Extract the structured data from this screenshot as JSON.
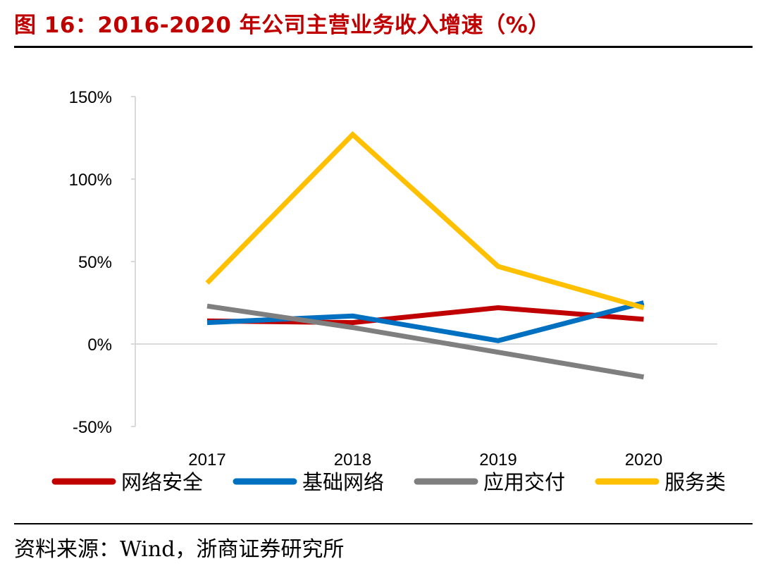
{
  "figure": {
    "title": "图 16：2016-2020 年公司主营业务收入增速（%）",
    "source": "资料来源：Wind，浙商证券研究所"
  },
  "chart_data": {
    "type": "line",
    "title": "图 16：2016-2020 年公司主营业务收入增速（%）",
    "xlabel": "",
    "ylabel": "",
    "categories": [
      "2017",
      "2018",
      "2019",
      "2020"
    ],
    "ylim": [
      -50,
      150
    ],
    "yticks": [
      -50,
      0,
      50,
      100,
      150
    ],
    "ytick_labels": [
      "-50%",
      "0%",
      "50%",
      "100%",
      "150%"
    ],
    "legend_position": "bottom",
    "series": [
      {
        "name": "网络安全",
        "color": "#c00000",
        "values": [
          14,
          13,
          22,
          15
        ]
      },
      {
        "name": "基础网络",
        "color": "#0070c0",
        "values": [
          13,
          17,
          2,
          25
        ]
      },
      {
        "name": "应用交付",
        "color": "#7f7f7f",
        "values": [
          23,
          10,
          -5,
          -20
        ]
      },
      {
        "name": "服务类",
        "color": "#ffc000",
        "values": [
          37,
          127,
          47,
          22
        ]
      }
    ]
  }
}
